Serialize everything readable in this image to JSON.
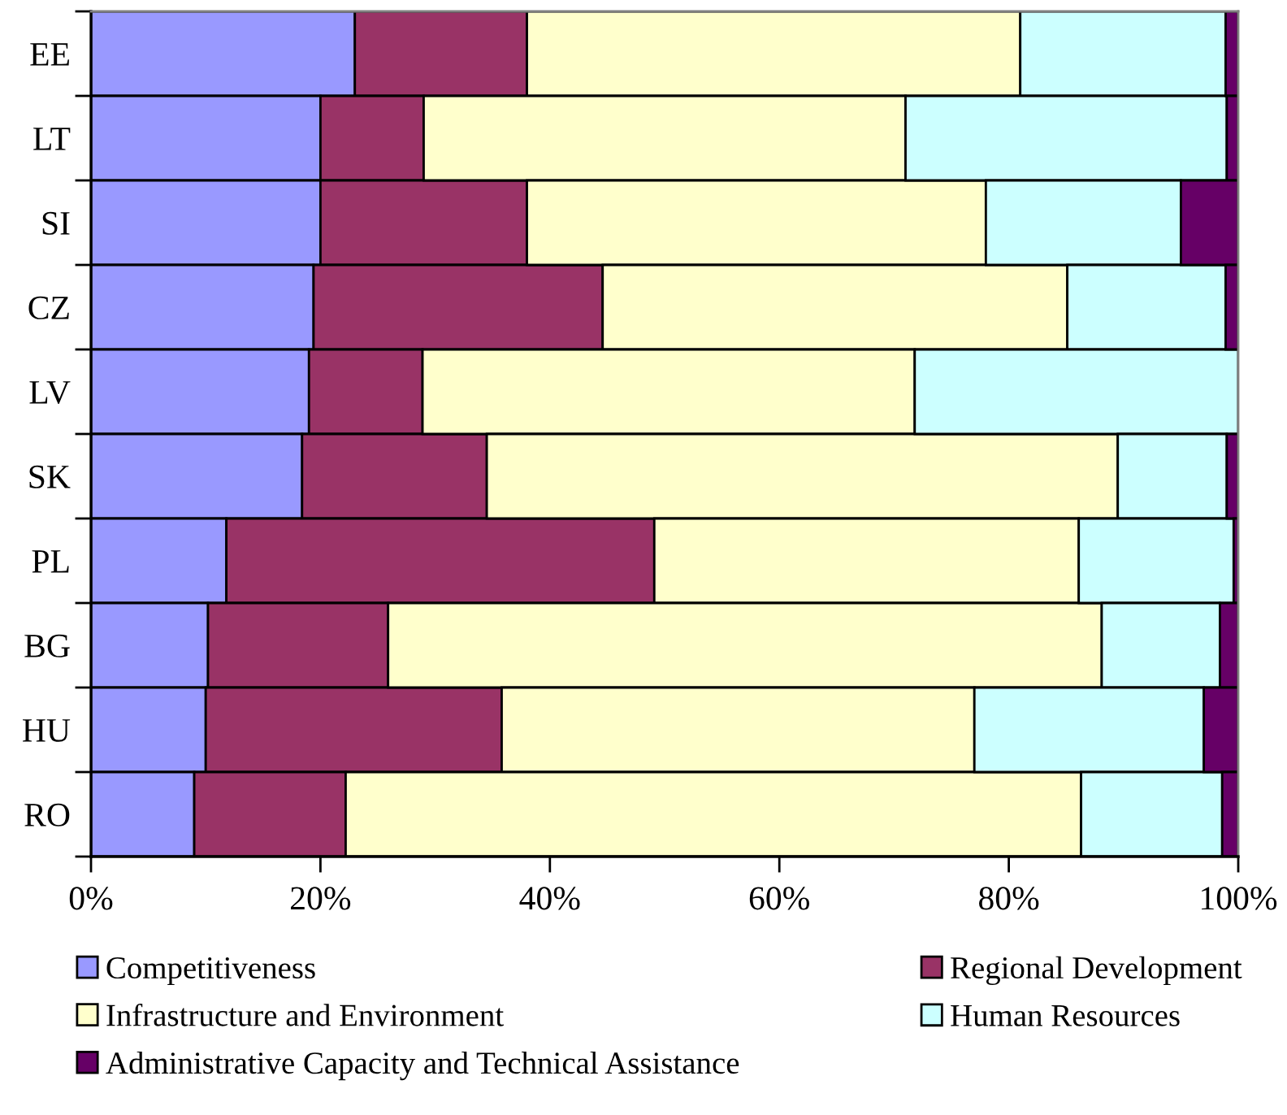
{
  "chart_data": {
    "type": "bar",
    "orientation": "horizontal",
    "stacked": true,
    "categories": [
      "EE",
      "LT",
      "SI",
      "CZ",
      "LV",
      "SK",
      "PL",
      "BG",
      "HU",
      "RO"
    ],
    "series": [
      {
        "name": "Competitiveness",
        "color": "#9999ff",
        "values": [
          23.0,
          20.0,
          20.0,
          19.4,
          19.0,
          18.4,
          11.8,
          10.2,
          10.0,
          9.0
        ]
      },
      {
        "name": "Regional Development",
        "color": "#993366",
        "values": [
          15.0,
          9.0,
          18.0,
          25.2,
          9.9,
          16.1,
          37.3,
          15.7,
          25.8,
          13.2
        ]
      },
      {
        "name": "Infrastructure and Environment",
        "color": "#ffffcc",
        "values": [
          43.0,
          42.0,
          40.0,
          40.5,
          42.9,
          55.0,
          37.0,
          62.2,
          41.2,
          64.1
        ]
      },
      {
        "name": "Human Resources",
        "color": "#ccffff",
        "values": [
          17.9,
          28.0,
          17.0,
          13.8,
          28.2,
          9.5,
          13.5,
          10.3,
          20.0,
          12.3
        ]
      },
      {
        "name": "Administrative Capacity and Technical Assistance",
        "color": "#660066",
        "values": [
          1.1,
          1.0,
          5.0,
          1.1,
          0,
          1.0,
          0.4,
          1.6,
          3.0,
          1.4
        ]
      }
    ],
    "xlim": [
      0,
      100
    ],
    "xticks": [
      {
        "value": 0,
        "label": "0%"
      },
      {
        "value": 20,
        "label": "20%"
      },
      {
        "value": 40,
        "label": "40%"
      },
      {
        "value": 60,
        "label": "60%"
      },
      {
        "value": 80,
        "label": "80%"
      },
      {
        "value": 100,
        "label": "100%"
      }
    ],
    "legend": "bottom"
  }
}
